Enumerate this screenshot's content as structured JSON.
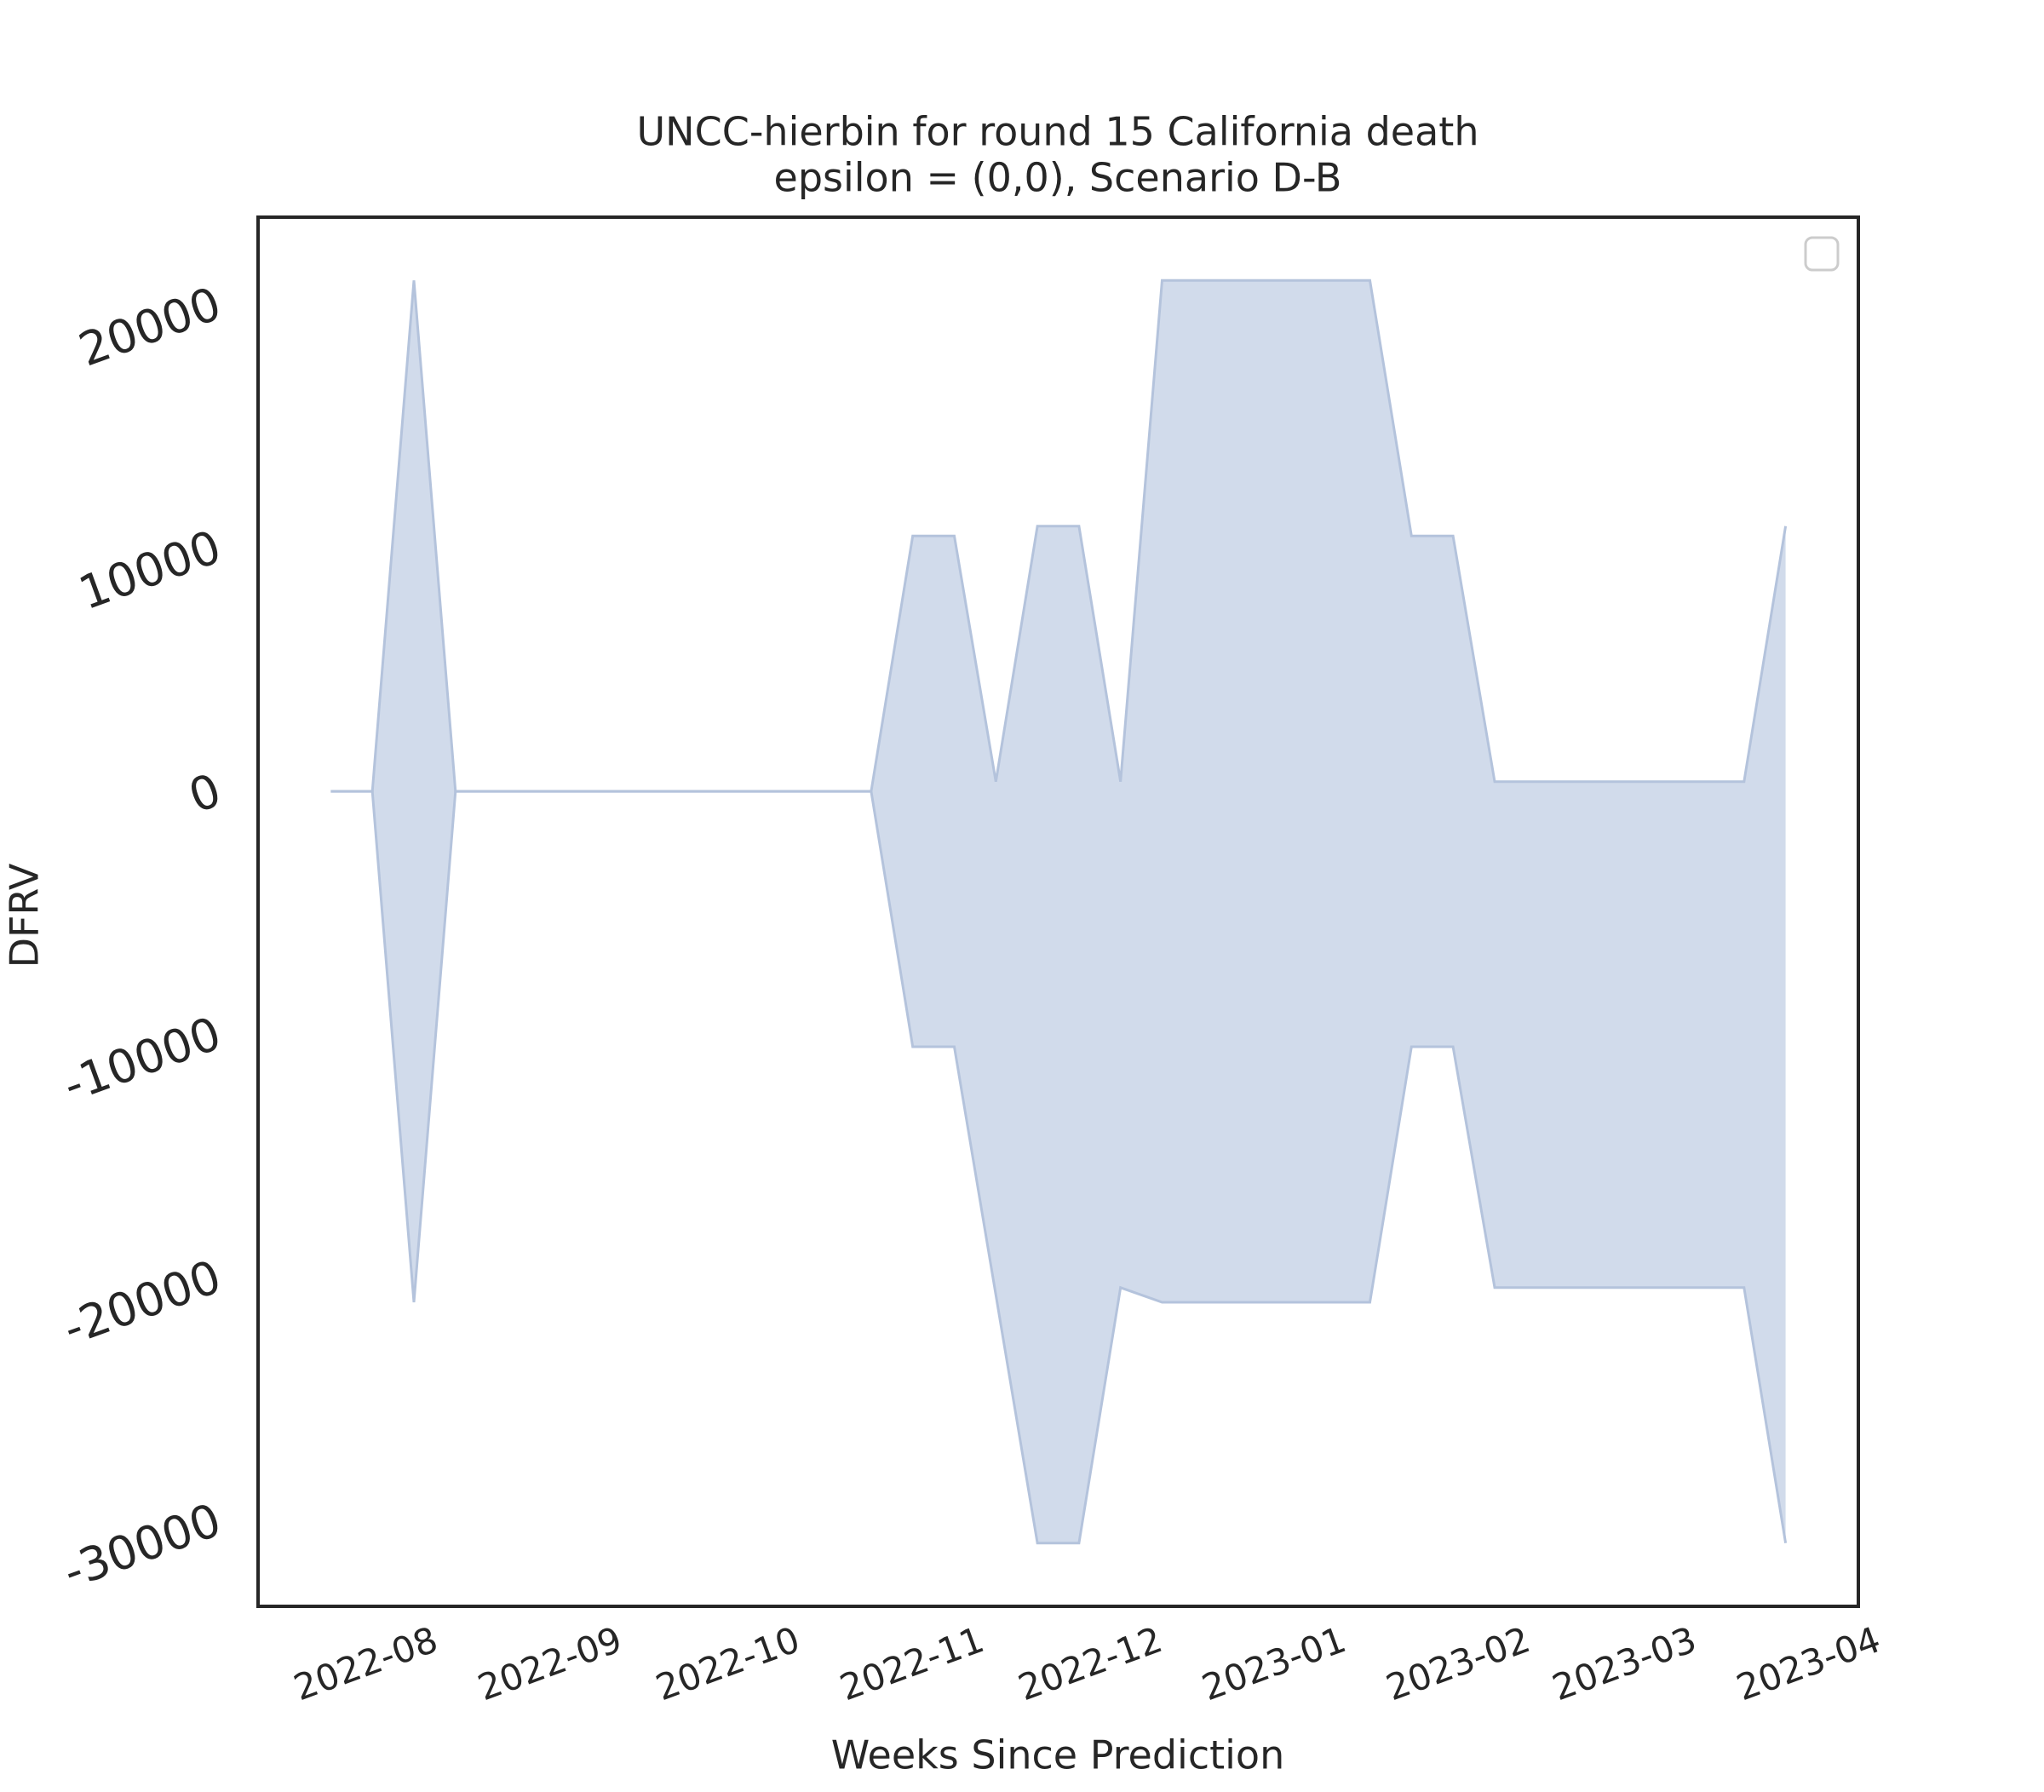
{
  "chart_data": {
    "type": "band",
    "title": "UNCC-hierbin for round 15 California death",
    "subtitle": "epsilon = (0,0), Scenario D-B",
    "x_label": "Weeks Since Prediction",
    "y_label": "DFRV",
    "x": [
      0,
      1,
      2,
      3,
      4,
      5,
      6,
      7,
      8,
      9,
      10,
      11,
      12,
      13,
      14,
      15,
      16,
      17,
      18,
      19,
      20,
      21,
      22,
      23,
      24,
      25,
      26,
      27,
      28,
      29,
      30,
      31,
      32,
      33,
      34,
      35
    ],
    "upper": [
      0,
      0,
      21000,
      0,
      0,
      0,
      0,
      0,
      0,
      0,
      0,
      0,
      0,
      0,
      10500,
      10500,
      400,
      10900,
      10900,
      400,
      21000,
      21000,
      21000,
      21000,
      21000,
      21000,
      10500,
      10500,
      400,
      400,
      400,
      400,
      400,
      400,
      400,
      10900
    ],
    "lower": [
      0,
      0,
      -21000,
      0,
      0,
      0,
      0,
      0,
      0,
      0,
      0,
      0,
      0,
      0,
      -10500,
      -10500,
      -20700,
      -30900,
      -30900,
      -20400,
      -21000,
      -21000,
      -21000,
      -21000,
      -21000,
      -21000,
      -10500,
      -10500,
      -20400,
      -20400,
      -20400,
      -20400,
      -20400,
      -20400,
      -20400,
      -30900
    ],
    "color": "#d1dbeb",
    "edge_color": "#b4c3dc",
    "xlim": [
      -1.75,
      36.75
    ],
    "ylim": [
      -33500,
      23600
    ],
    "xticks": [
      {
        "value": 0.86,
        "label": "2022-08"
      },
      {
        "value": 5.29,
        "label": "2022-09"
      },
      {
        "value": 9.57,
        "label": "2022-10"
      },
      {
        "value": 14.0,
        "label": "2022-11"
      },
      {
        "value": 18.29,
        "label": "2022-12"
      },
      {
        "value": 22.71,
        "label": "2023-01"
      },
      {
        "value": 27.14,
        "label": "2023-02"
      },
      {
        "value": 31.14,
        "label": "2023-03"
      },
      {
        "value": 35.57,
        "label": "2023-04"
      }
    ],
    "yticks": [
      -30000,
      -20000,
      -10000,
      0,
      10000,
      20000
    ],
    "grid": false,
    "legend": "upper right"
  }
}
